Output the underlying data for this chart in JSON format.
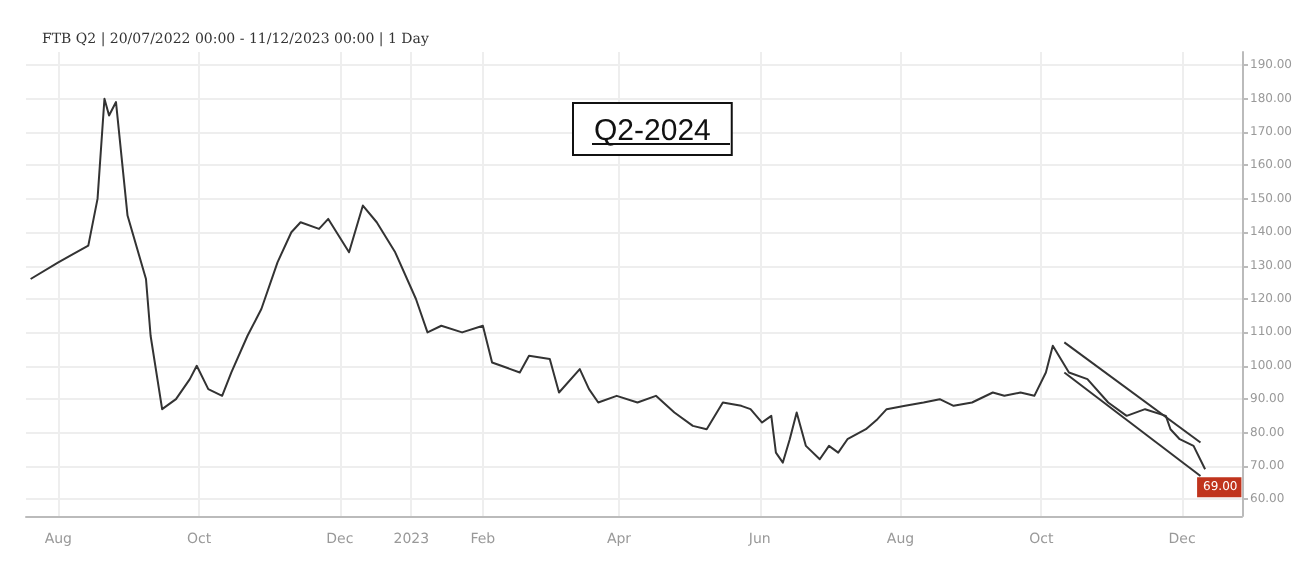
{
  "chart_data": {
    "type": "line",
    "title": "FTB Q2 | 20/07/2022 00:00 - 11/12/2023 00:00 | 1 Day",
    "annotations": [
      "Q2-2024",
      {
        "text": "69.00",
        "x": "2023-12-11",
        "y": 69
      }
    ],
    "xlim": [
      "2022-07-18",
      "2023-12-27"
    ],
    "xticks": [
      {
        "value": "2022-08-01",
        "label": "Aug"
      },
      {
        "value": "2022-10-01",
        "label": "Oct"
      },
      {
        "value": "2022-12-01",
        "label": "Dec"
      },
      {
        "value": "2023-01-01",
        "label": "2023"
      },
      {
        "value": "2023-02-01",
        "label": "Feb"
      },
      {
        "value": "2023-04-01",
        "label": "Apr"
      },
      {
        "value": "2023-06-01",
        "label": "Jun"
      },
      {
        "value": "2023-08-01",
        "label": "Aug"
      },
      {
        "value": "2023-10-01",
        "label": "Oct"
      },
      {
        "value": "2023-12-01",
        "label": "Dec"
      }
    ],
    "ylim": [
      55,
      194
    ],
    "yticks": [
      {
        "value": 60,
        "label": "60.00"
      },
      {
        "value": 70,
        "label": "70.00"
      },
      {
        "value": 80,
        "label": "80.00"
      },
      {
        "value": 90,
        "label": "90.00"
      },
      {
        "value": 100,
        "label": "100.00"
      },
      {
        "value": 110,
        "label": "110.00"
      },
      {
        "value": 120,
        "label": "120.00"
      },
      {
        "value": 130,
        "label": "130.00"
      },
      {
        "value": 140,
        "label": "140.00"
      },
      {
        "value": 150,
        "label": "150.00"
      },
      {
        "value": 160,
        "label": "160.00"
      },
      {
        "value": 170,
        "label": "170.00"
      },
      {
        "value": 180,
        "label": "180.00"
      },
      {
        "value": 190,
        "label": "190.00"
      }
    ],
    "grid": true,
    "marker": "none",
    "line_style": "solid",
    "series": [
      {
        "color": "#333333",
        "x": [
          "2022-07-20",
          "2022-08-01",
          "2022-08-14",
          "2022-08-18",
          "2022-08-21",
          "2022-08-23",
          "2022-08-26",
          "2022-08-31",
          "2022-09-08",
          "2022-09-10",
          "2022-09-15",
          "2022-09-21",
          "2022-09-27",
          "2022-09-30",
          "2022-10-05",
          "2022-10-11",
          "2022-10-15",
          "2022-10-22",
          "2022-10-28",
          "2022-11-04",
          "2022-11-10",
          "2022-11-14",
          "2022-11-22",
          "2022-11-26",
          "2022-12-05",
          "2022-12-11",
          "2022-12-17",
          "2022-12-25",
          "2023-01-03",
          "2023-01-08",
          "2023-01-14",
          "2023-01-23",
          "2023-02-01",
          "2023-02-05",
          "2023-02-17",
          "2023-02-21",
          "2023-03-02",
          "2023-03-06",
          "2023-03-15",
          "2023-03-19",
          "2023-03-23",
          "2023-03-31",
          "2023-04-09",
          "2023-04-17",
          "2023-04-25",
          "2023-05-03",
          "2023-05-09",
          "2023-05-16",
          "2023-05-24",
          "2023-05-28",
          "2023-06-02",
          "2023-06-06",
          "2023-06-08",
          "2023-06-11",
          "2023-06-14",
          "2023-06-17",
          "2023-06-21",
          "2023-06-27",
          "2023-07-01",
          "2023-07-05",
          "2023-07-09",
          "2023-07-17",
          "2023-07-22",
          "2023-07-26",
          "2023-08-03",
          "2023-08-11",
          "2023-08-18",
          "2023-08-24",
          "2023-09-01",
          "2023-09-10",
          "2023-09-15",
          "2023-09-22",
          "2023-09-28",
          "2023-10-03",
          "2023-10-06",
          "2023-10-13",
          "2023-10-21",
          "2023-10-30",
          "2023-11-07",
          "2023-11-15",
          "2023-11-24",
          "2023-11-26",
          "2023-11-30",
          "2023-12-06",
          "2023-12-11"
        ],
        "values": [
          126,
          131,
          136,
          150,
          180,
          175,
          179,
          145,
          126,
          109,
          87,
          90,
          96,
          100,
          93,
          91,
          98,
          109,
          117,
          131,
          140,
          143,
          141,
          144,
          134,
          148,
          143,
          134,
          120,
          110,
          112,
          110,
          112,
          101,
          98,
          103,
          102,
          92,
          99,
          93,
          89,
          91,
          89,
          91,
          86,
          82,
          81,
          89,
          88,
          87,
          83,
          85,
          74,
          71,
          78,
          86,
          76,
          72,
          76,
          74,
          78,
          81,
          84,
          87,
          88,
          89,
          90,
          88,
          89,
          92,
          91,
          92,
          91,
          98,
          106,
          98,
          96,
          89,
          85,
          87,
          85,
          81,
          78,
          76,
          69
        ]
      },
      {
        "color": "#333333",
        "x": [
          "2023-10-11",
          "2023-12-09"
        ],
        "values": [
          107,
          77
        ]
      },
      {
        "color": "#333333",
        "x": [
          "2023-10-11",
          "2023-12-09"
        ],
        "values": [
          98,
          67
        ]
      }
    ]
  }
}
